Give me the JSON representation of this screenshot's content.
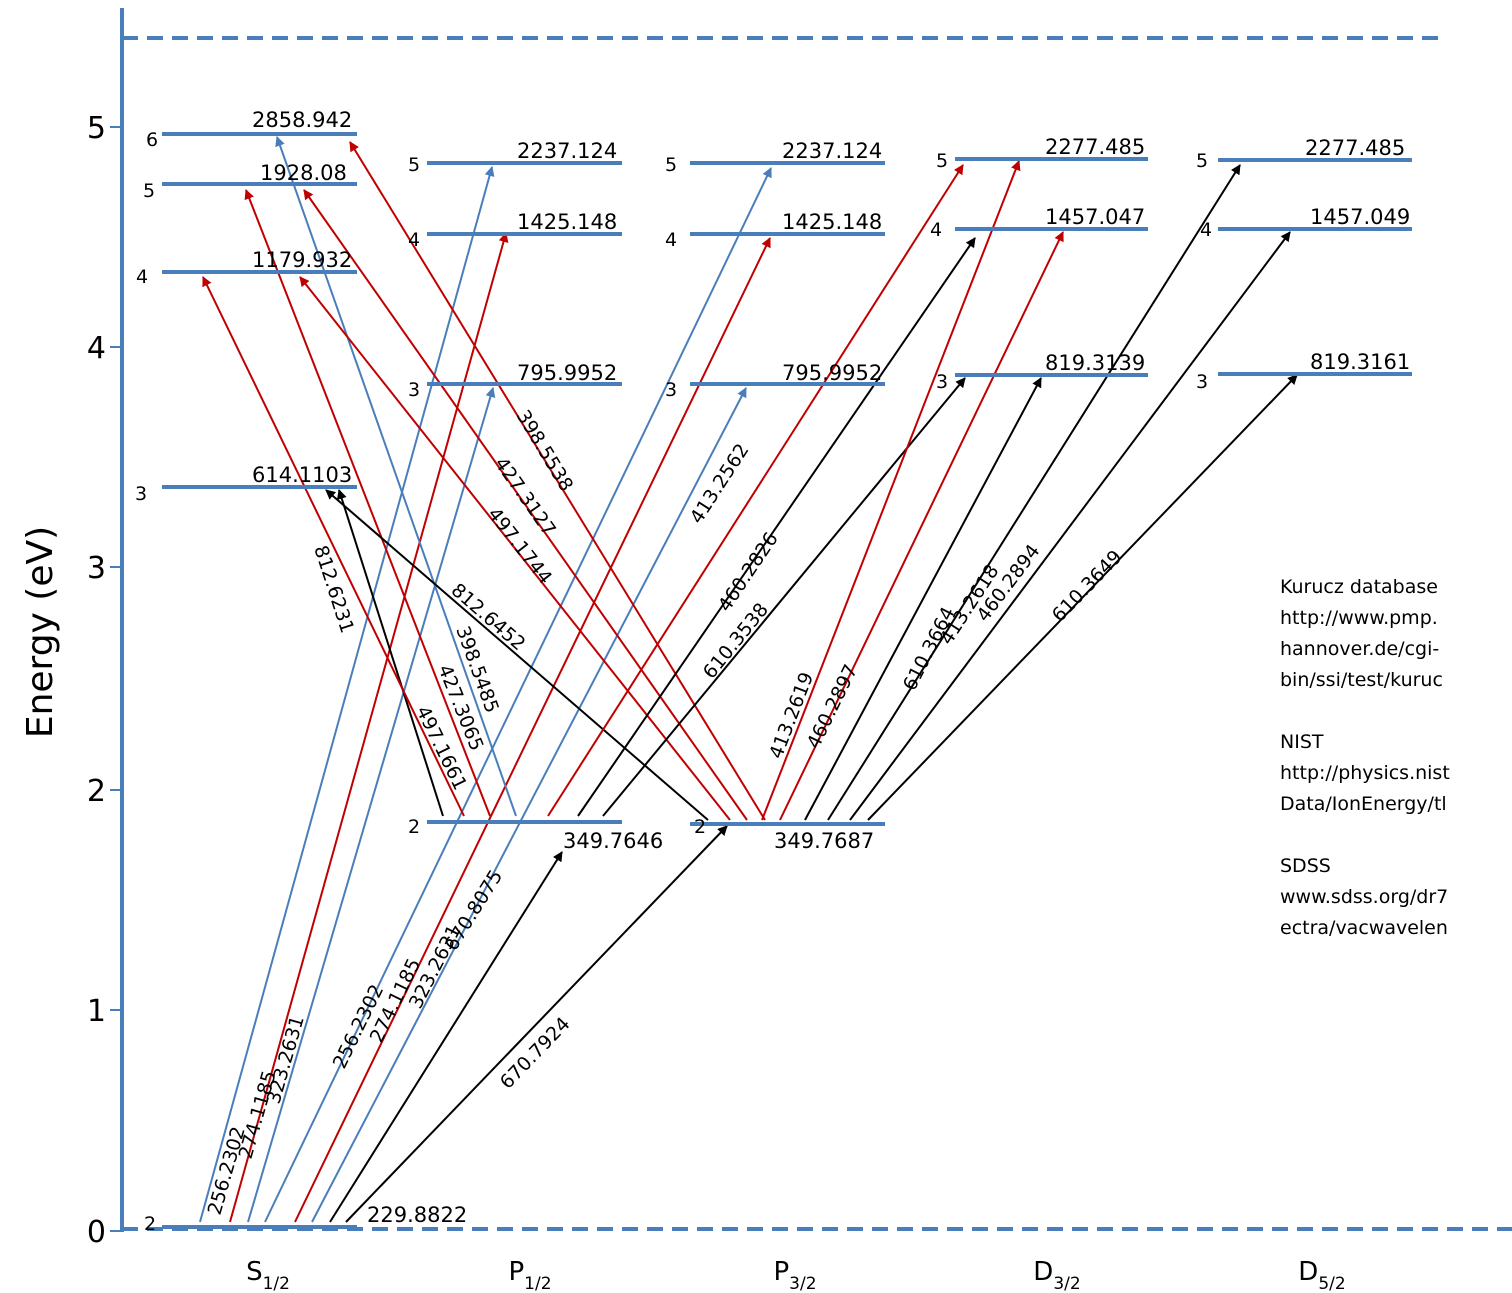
{
  "axis": {
    "ylabel": "Energy (eV)",
    "yticks": [
      "0",
      "1",
      "2",
      "3",
      "4",
      "5"
    ],
    "columns": [
      {
        "main": "S",
        "sub": "1/2"
      },
      {
        "main": "P",
        "sub": "1/2"
      },
      {
        "main": "P",
        "sub": "3/2"
      },
      {
        "main": "D",
        "sub": "3/2"
      },
      {
        "main": "D",
        "sub": "5/2"
      }
    ]
  },
  "colors": {
    "level": "#4a7ebb",
    "blue_arrow": "#4a7ebb",
    "red_arrow": "#c00000",
    "black_arrow": "#000000"
  },
  "levels": [
    {
      "id": "S2",
      "n": "2",
      "energy": "229.8822"
    },
    {
      "id": "S3",
      "n": "3",
      "energy": "614.1103"
    },
    {
      "id": "S4",
      "n": "4",
      "energy": "1179.932"
    },
    {
      "id": "S5",
      "n": "5",
      "energy": "1928.08"
    },
    {
      "id": "S6",
      "n": "6",
      "energy": "2858.942"
    },
    {
      "id": "P12_2",
      "n": "2",
      "energy": "349.7646"
    },
    {
      "id": "P12_3",
      "n": "3",
      "energy": "795.9952"
    },
    {
      "id": "P12_4",
      "n": "4",
      "energy": "1425.148"
    },
    {
      "id": "P12_5",
      "n": "5",
      "energy": "2237.124"
    },
    {
      "id": "P32_2",
      "n": "2",
      "energy": "349.7687"
    },
    {
      "id": "P32_3",
      "n": "3",
      "energy": "795.9952"
    },
    {
      "id": "P32_4",
      "n": "4",
      "energy": "1425.148"
    },
    {
      "id": "P32_5",
      "n": "5",
      "energy": "2237.124"
    },
    {
      "id": "D32_3",
      "n": "3",
      "energy": "819.3139"
    },
    {
      "id": "D32_4",
      "n": "4",
      "energy": "1457.047"
    },
    {
      "id": "D32_5",
      "n": "5",
      "energy": "2277.485"
    },
    {
      "id": "D52_3",
      "n": "3",
      "energy": "819.3161"
    },
    {
      "id": "D52_4",
      "n": "4",
      "energy": "1457.049"
    },
    {
      "id": "D52_5",
      "n": "5",
      "energy": "2277.485"
    }
  ],
  "transitions": [
    {
      "from": "S2",
      "to": "P12_5",
      "color": "blue",
      "label": "256.2302"
    },
    {
      "from": "S2",
      "to": "P12_4",
      "color": "red",
      "label": "274.1185"
    },
    {
      "from": "S2",
      "to": "P12_3",
      "color": "blue",
      "label": "323.2631"
    },
    {
      "from": "S2",
      "to": "P32_5",
      "color": "blue",
      "label": "256.2302"
    },
    {
      "from": "S2",
      "to": "P32_4",
      "color": "red",
      "label": "274.1185"
    },
    {
      "from": "S2",
      "to": "P32_3",
      "color": "blue",
      "label": "323.2631"
    },
    {
      "from": "S2",
      "to": "P12_2",
      "color": "black",
      "label": "670.8075"
    },
    {
      "from": "S2",
      "to": "P32_2",
      "color": "black",
      "label": "670.7924"
    },
    {
      "from": "P12_2",
      "to": "S3",
      "color": "black",
      "label": "812.6231"
    },
    {
      "from": "P12_2",
      "to": "S4",
      "color": "red",
      "label": "497.1661"
    },
    {
      "from": "P12_2",
      "to": "S5",
      "color": "red",
      "label": "427.3065"
    },
    {
      "from": "P12_2",
      "to": "S6",
      "color": "blue",
      "label": "398.5485"
    },
    {
      "from": "P32_2",
      "to": "S3",
      "color": "black",
      "label": "812.6452"
    },
    {
      "from": "P32_2",
      "to": "S4",
      "color": "red",
      "label": "497.1744"
    },
    {
      "from": "P32_2",
      "to": "S5",
      "color": "red",
      "label": "427.3127"
    },
    {
      "from": "P32_2",
      "to": "S6",
      "color": "red",
      "label": "398.5538"
    },
    {
      "from": "P12_2",
      "to": "D32_5",
      "color": "red",
      "label": "413.2562"
    },
    {
      "from": "P12_2",
      "to": "D32_4",
      "color": "black",
      "label": "460.2826"
    },
    {
      "from": "P12_2",
      "to": "D32_3",
      "color": "black",
      "label": "610.3538"
    },
    {
      "from": "P32_2",
      "to": "D32_5",
      "color": "red",
      "label": "413.2619"
    },
    {
      "from": "P32_2",
      "to": "D32_4",
      "color": "red",
      "label": "460.2897"
    },
    {
      "from": "P32_2",
      "to": "D32_3",
      "color": "black",
      "label": "610.3664"
    },
    {
      "from": "P32_2",
      "to": "D52_5",
      "color": "black",
      "label": "413.2618"
    },
    {
      "from": "P32_2",
      "to": "D52_4",
      "color": "black",
      "label": "460.2894"
    },
    {
      "from": "P32_2",
      "to": "D52_3",
      "color": "black",
      "label": "610.3649"
    }
  ],
  "notes": {
    "kurucz": {
      "title": "Kurucz  database",
      "lines": [
        "http://www.pmp.",
        "hannover.de/cgi-",
        "bin/ssi/test/kuruc"
      ]
    },
    "nist": {
      "title": "NIST",
      "lines": [
        "http://physics.nist",
        "Data/IonEnergy/tl"
      ]
    },
    "sdss": {
      "title": "SDSS",
      "lines": [
        "www.sdss.org/dr7",
        "ectra/vacwavelen"
      ]
    }
  }
}
